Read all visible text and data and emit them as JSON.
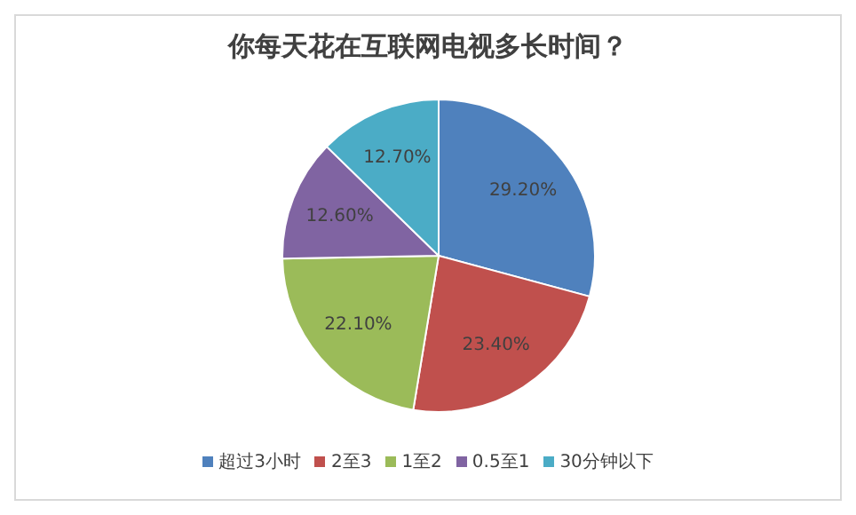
{
  "chart_data": {
    "type": "pie",
    "title": "你每天花在互联网电视多长时间？",
    "categories": [
      "超过3小时",
      "2至3",
      "1至2",
      "0.5至1",
      "30分钟以下"
    ],
    "values": [
      29.2,
      23.4,
      22.1,
      12.6,
      12.7
    ],
    "colors": [
      "#4f81bd",
      "#c0504d",
      "#9bbb59",
      "#8064a2",
      "#4bacc6"
    ],
    "value_labels": [
      "29.20%",
      "23.40%",
      "22.10%",
      "12.60%",
      "12.70%"
    ],
    "legend": "bottom"
  }
}
